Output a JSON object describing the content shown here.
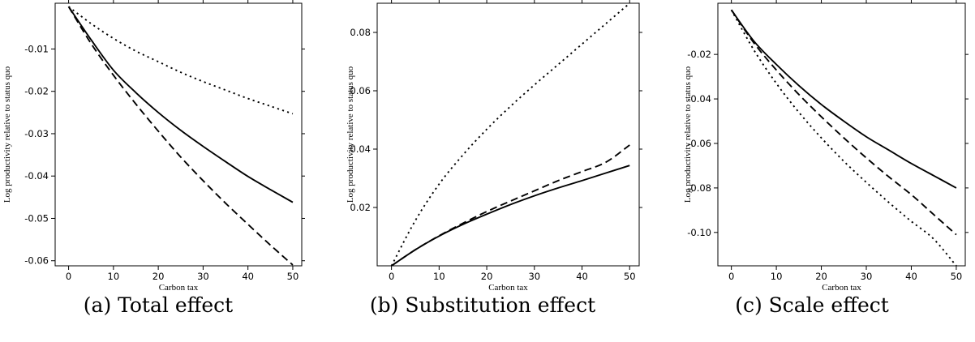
{
  "charts": [
    {
      "caption": "(a) Total effect",
      "chart_data": {
        "type": "line",
        "xlabel": "Carbon tax",
        "ylabel": "Log productivity relative to status quo",
        "xlim": [
          -3,
          52
        ],
        "ylim": [
          -0.0612,
          0.0008
        ],
        "xticks": [
          "0",
          "10",
          "20",
          "30",
          "40",
          "50"
        ],
        "yticks": [
          "-0.01",
          "-0.02",
          "-0.03",
          "-0.04",
          "-0.05",
          "-0.06"
        ],
        "x": [
          0,
          5,
          10,
          15,
          20,
          25,
          30,
          35,
          40,
          45,
          50
        ],
        "series": [
          {
            "style": "solid",
            "values": [
              0,
              -0.0078,
              -0.015,
              -0.0203,
              -0.025,
              -0.0292,
              -0.033,
              -0.0366,
              -0.0401,
              -0.0432,
              -0.0462
            ]
          },
          {
            "style": "dashed",
            "values": [
              0,
              -0.0087,
              -0.0162,
              -0.023,
              -0.0294,
              -0.0355,
              -0.0411,
              -0.0464,
              -0.0514,
              -0.0563,
              -0.061
            ]
          },
          {
            "style": "dotted",
            "values": [
              0,
              -0.004,
              -0.0075,
              -0.0105,
              -0.013,
              -0.0155,
              -0.0177,
              -0.0197,
              -0.0217,
              -0.0235,
              -0.0253
            ]
          }
        ]
      }
    },
    {
      "caption": "(b) Substitution effect",
      "chart_data": {
        "type": "line",
        "xlabel": "Carbon tax",
        "ylabel": "Log productivity relative to status quo",
        "xlim": [
          -3,
          52
        ],
        "ylim": [
          0,
          0.09
        ],
        "xticks": [
          "0",
          "10",
          "20",
          "30",
          "40",
          "50"
        ],
        "yticks": [
          "0.02",
          "0.04",
          "0.06",
          "0.08"
        ],
        "x": [
          0,
          5,
          10,
          15,
          20,
          25,
          30,
          35,
          40,
          45,
          50
        ],
        "series": [
          {
            "style": "solid",
            "values": [
              0,
              0.0055,
              0.0102,
              0.0142,
              0.0177,
              0.021,
              0.024,
              0.0267,
              0.0292,
              0.0318,
              0.0344
            ]
          },
          {
            "style": "dashed",
            "values": [
              0,
              0.0055,
              0.0103,
              0.0146,
              0.0186,
              0.0222,
              0.0257,
              0.0292,
              0.0323,
              0.0355,
              0.0414
            ]
          },
          {
            "style": "dotted",
            "values": [
              0,
              0.0155,
              0.028,
              0.038,
              0.0468,
              0.0547,
              0.062,
              0.069,
              0.076,
              0.083,
              0.09
            ]
          }
        ]
      }
    },
    {
      "caption": "(c) Scale effect",
      "chart_data": {
        "type": "line",
        "xlabel": "Carbon tax",
        "ylabel": "Log productivity relative to status quo",
        "xlim": [
          -3,
          52
        ],
        "ylim": [
          -0.115,
          0.003
        ],
        "xticks": [
          "0",
          "10",
          "20",
          "30",
          "40",
          "50"
        ],
        "yticks": [
          "-0.02",
          "-0.04",
          "-0.06",
          "-0.08",
          "-0.10"
        ],
        "x": [
          0,
          5,
          10,
          15,
          20,
          25,
          30,
          35,
          40,
          45,
          50
        ],
        "series": [
          {
            "style": "solid",
            "values": [
              0,
              -0.014,
              -0.0245,
              -0.034,
              -0.0425,
              -0.05,
              -0.057,
              -0.063,
              -0.069,
              -0.0745,
              -0.08
            ]
          },
          {
            "style": "dashed",
            "values": [
              0,
              -0.0148,
              -0.027,
              -0.038,
              -0.048,
              -0.0575,
              -0.0665,
              -0.075,
              -0.083,
              -0.092,
              -0.101
            ]
          },
          {
            "style": "dotted",
            "values": [
              0,
              -0.018,
              -0.033,
              -0.046,
              -0.0575,
              -0.068,
              -0.0775,
              -0.0865,
              -0.095,
              -0.103,
              -0.115
            ]
          }
        ]
      }
    }
  ]
}
